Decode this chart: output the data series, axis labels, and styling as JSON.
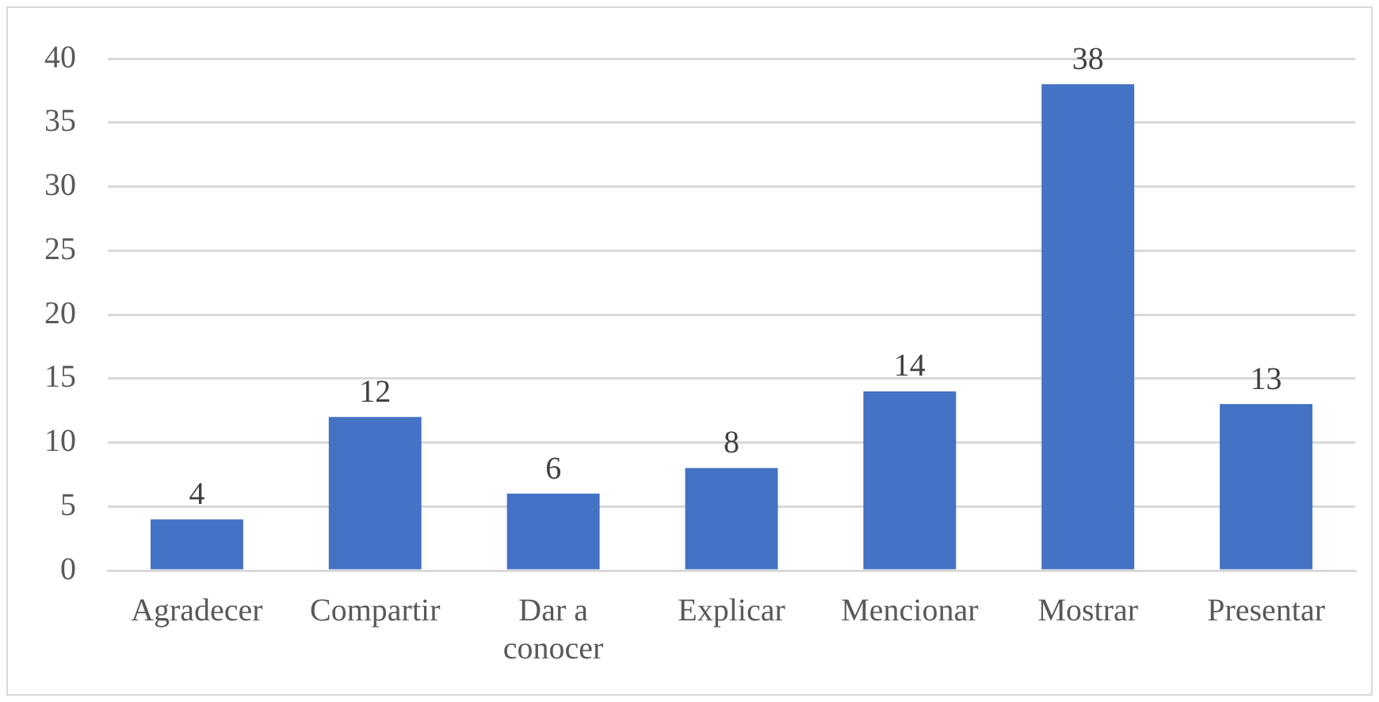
{
  "chart_data": {
    "type": "bar",
    "categories": [
      "Agradecer",
      "Compartir",
      "Dar a conocer",
      "Explicar",
      "Mencionar",
      "Mostrar",
      "Presentar"
    ],
    "values": [
      4,
      12,
      6,
      8,
      14,
      38,
      13
    ],
    "color": "#4472c4",
    "ylim": [
      0,
      40
    ],
    "yticks": [
      0,
      5,
      10,
      15,
      20,
      25,
      30,
      35,
      40
    ],
    "grid": "y",
    "data_labels": true
  }
}
